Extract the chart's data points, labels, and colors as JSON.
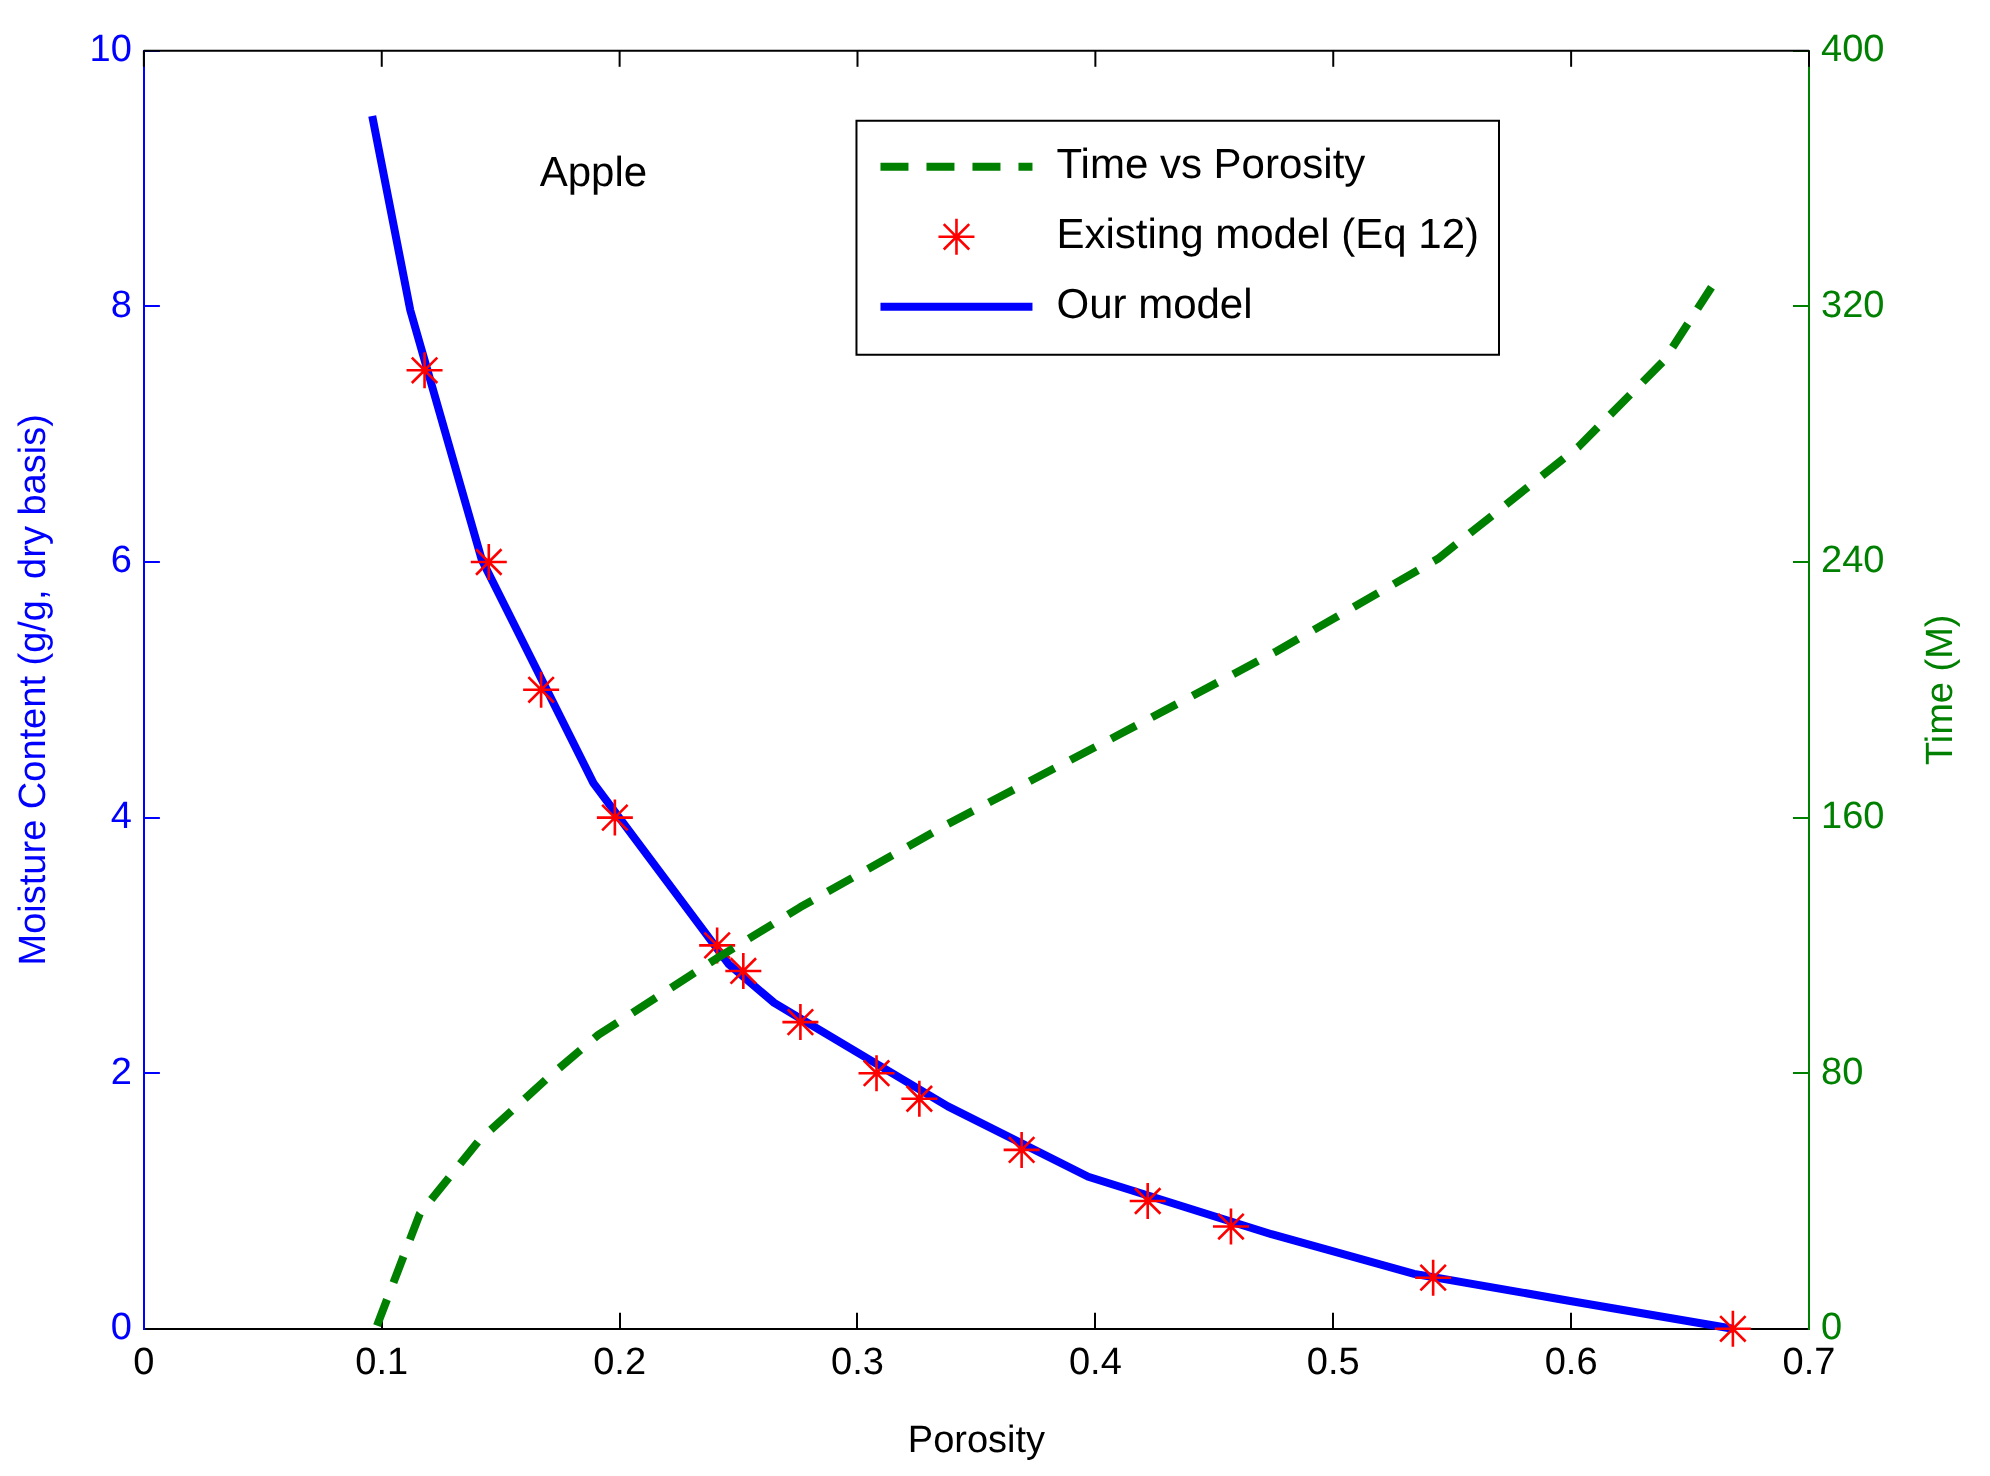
{
  "chart_data": {
    "type": "line",
    "xlabel": "Porosity",
    "ylabel": "Moisture Content (g/g, dry basis)",
    "y2label": "Time (M)",
    "annotations": [
      "Apple"
    ],
    "xlim": [
      0,
      0.7
    ],
    "xticks": [
      0,
      0.1,
      0.2,
      0.3,
      0.4,
      0.5,
      0.6,
      0.7
    ],
    "ylim": [
      0,
      10
    ],
    "yticks": [
      0,
      2,
      4,
      6,
      8,
      10
    ],
    "y2lim": [
      0,
      400
    ],
    "y2ticks": [
      0,
      80,
      160,
      240,
      320,
      400
    ],
    "legend": "top right",
    "grid": false,
    "series": [
      {
        "name": "Time vs Porosity",
        "axis": "y2",
        "color": "#008000",
        "line_style": "dashed",
        "marker": "none",
        "x": [
          0.098,
          0.116,
          0.141,
          0.169,
          0.191,
          0.241,
          0.276,
          0.319,
          0.338,
          0.41,
          0.476,
          0.544,
          0.603,
          0.639,
          0.659
        ],
        "values": [
          1,
          36,
          59,
          78,
          92,
          116,
          132,
          150,
          158,
          186,
          212,
          241,
          276,
          303,
          326
        ]
      },
      {
        "name": "Existing model (Eq 12)",
        "type": "scatter",
        "color": "#ff0000",
        "marker": "cross",
        "x": [
          0.118,
          0.145,
          0.167,
          0.198,
          0.241,
          0.252,
          0.276,
          0.308,
          0.326,
          0.369,
          0.422,
          0.457,
          0.542,
          0.668
        ],
        "values": [
          7.5,
          6,
          5,
          4,
          3,
          2.8,
          2.4,
          2,
          1.8,
          1.4,
          1,
          0.8,
          0.4,
          0
        ]
      },
      {
        "name": "Our model",
        "color": "#0000ff",
        "line_style": "solid",
        "marker": "none",
        "x": [
          0.096,
          0.112,
          0.142,
          0.189,
          0.246,
          0.265,
          0.338,
          0.397,
          0.474,
          0.534,
          0.599,
          0.668
        ],
        "values": [
          9.49,
          7.97,
          6.02,
          4.27,
          2.85,
          2.55,
          1.74,
          1.19,
          0.74,
          0.43,
          0.22,
          0
        ]
      }
    ]
  }
}
